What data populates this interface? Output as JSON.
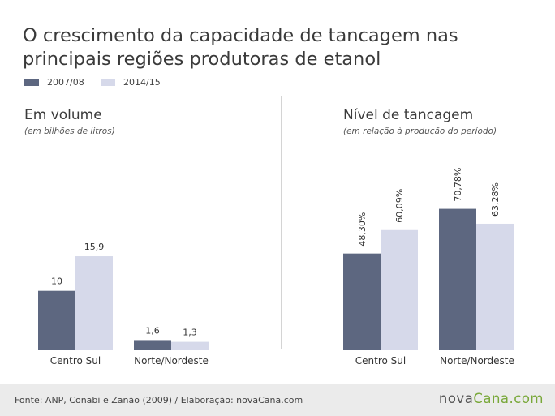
{
  "header": {
    "title": "O crescimento da capacidade de tancagem nas principais regiões produtoras de etanol"
  },
  "legend": [
    {
      "label": "2007/08",
      "color": "#5d6780"
    },
    {
      "label": "2014/15",
      "color": "#d6d9ea"
    }
  ],
  "panels": [
    {
      "title": "Em volume",
      "subtitle": "(em bilhões de litros)"
    },
    {
      "title": "Nível de tancagem",
      "subtitle": "(em relação à produção do período)"
    }
  ],
  "chart_data": [
    {
      "type": "bar",
      "title": "Em volume",
      "subtitle": "(em bilhões de litros)",
      "categories": [
        "Centro Sul",
        "Norte/Nordeste"
      ],
      "series": [
        {
          "name": "2007/08",
          "values": [
            10,
            1.6
          ],
          "labels": [
            "10",
            "1,6"
          ],
          "color": "#5d6780"
        },
        {
          "name": "2014/15",
          "values": [
            15.9,
            1.3
          ],
          "labels": [
            "15,9",
            "1,3"
          ],
          "color": "#d6d9ea"
        }
      ],
      "ylim": [
        0,
        26
      ],
      "grid": false,
      "label_rotation": "horizontal"
    },
    {
      "type": "bar",
      "title": "Nível de tancagem",
      "subtitle": "(em relação à produção do período)",
      "categories": [
        "Centro Sul",
        "Norte/Nordeste"
      ],
      "series": [
        {
          "name": "2007/08",
          "values": [
            48.3,
            70.78
          ],
          "labels": [
            "48,30%",
            "70,78%"
          ],
          "color": "#5d6780"
        },
        {
          "name": "2014/15",
          "values": [
            60.09,
            63.28
          ],
          "labels": [
            "60,09%",
            "63,28%"
          ],
          "color": "#d6d9ea"
        }
      ],
      "ylim": [
        0,
        100
      ],
      "grid": false,
      "label_rotation": "vertical"
    }
  ],
  "footer": {
    "source": "Fonte: ANP, Conabi e Zanão (2009) /  Elaboração: novaCana.com",
    "logo_part1": "nova",
    "logo_part2": "Cana.com",
    "logo_color": "#79a83a"
  }
}
